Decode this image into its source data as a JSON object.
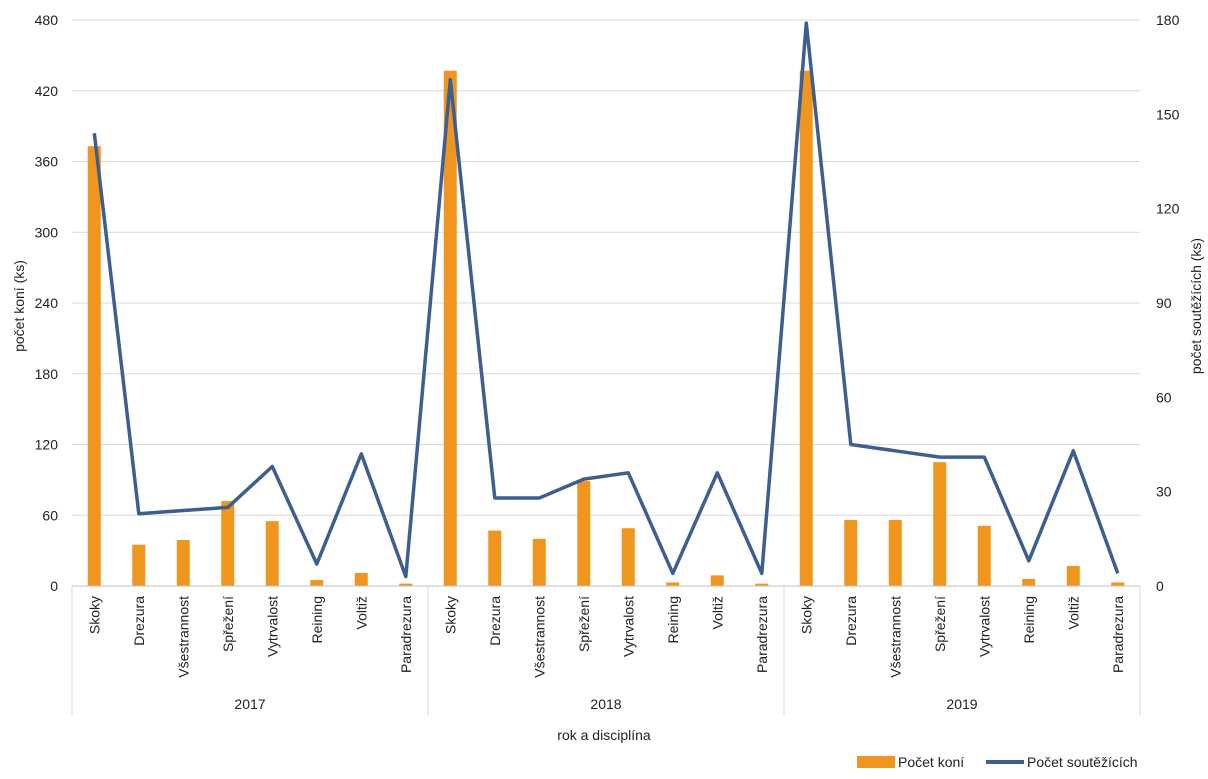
{
  "chart_data": {
    "type": "bar",
    "xlabel": "rok a disciplína",
    "ylabel": "počet koní (ks)",
    "y2label": "počet soutěžících (ks)",
    "ylim": [
      0,
      480
    ],
    "y2lim": [
      0,
      180
    ],
    "yticks": [
      "0",
      "60",
      "120",
      "180",
      "240",
      "300",
      "360",
      "420",
      "480"
    ],
    "y2ticks": [
      "0",
      "30",
      "60",
      "90",
      "120",
      "150",
      "180"
    ],
    "groups": [
      {
        "label": "2017",
        "categories": [
          "Skoky",
          "Drezura",
          "Všestrannost",
          "Spřežení",
          "Vytrvalost",
          "Reining",
          "Voltiž",
          "Paradrezura"
        ]
      },
      {
        "label": "2018",
        "categories": [
          "Skoky",
          "Drezura",
          "Všestrannost",
          "Spřežení",
          "Vytrvalost",
          "Reining",
          "Voltiž",
          "Paradrezura"
        ]
      },
      {
        "label": "2019",
        "categories": [
          "Skoky",
          "Drezura",
          "Všestrannost",
          "Spřežení",
          "Vytrvalost",
          "Reining",
          "Voltiž",
          "Paradrezura"
        ]
      }
    ],
    "series": [
      {
        "name": "Počet koní",
        "type": "bar",
        "axis": "left",
        "color": "#F0961E",
        "values": [
          373,
          35,
          39,
          72,
          55,
          5,
          11,
          2,
          437,
          47,
          40,
          89,
          49,
          3,
          9,
          2,
          437,
          56,
          56,
          105,
          51,
          6,
          17,
          3
        ]
      },
      {
        "name": "Počet soutěžících",
        "type": "line",
        "axis": "right",
        "color": "#3D5F8F",
        "values": [
          144,
          23,
          24,
          25,
          38,
          7,
          42,
          3,
          161,
          28,
          28,
          34,
          36,
          4,
          36,
          4,
          179,
          45,
          43,
          41,
          41,
          8,
          43,
          4
        ]
      }
    ],
    "grid": true,
    "legend": "bottom-right"
  }
}
